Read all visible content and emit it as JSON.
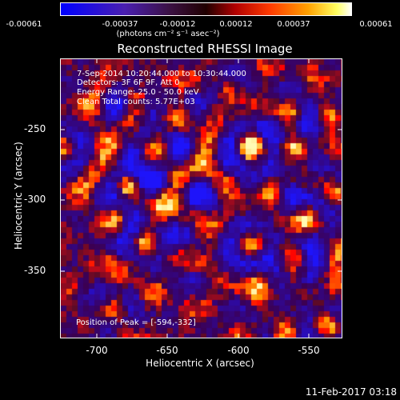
{
  "colorbar": {
    "ticks": [
      "-0.00061",
      "-0.00037",
      "-0.00012",
      "0.00012",
      "0.00037",
      "0.00061"
    ],
    "units": "(photons cm⁻² s⁻¹ asec⁻²)"
  },
  "title": "Reconstructed RHESSI Image",
  "info": {
    "line1": "7-Sep-2014 10:20:44.000 to 10:30:44.000",
    "line2": "Detectors: 3F 6F 9F, Att 0",
    "line3": "Energy Range: 25.0 - 50.0 keV",
    "line4": "Clean     Total counts: 5.77E+03"
  },
  "peak": "Position of Peak = [-594,-332]",
  "axes": {
    "xlabel": "Heliocentric X (arcsec)",
    "ylabel": "Heliocentric Y (arcsec)",
    "xticks": [
      "-700",
      "-650",
      "-600",
      "-550"
    ],
    "yticks": [
      "-250",
      "-300",
      "-350"
    ]
  },
  "timestamp": "11-Feb-2017 03:18"
}
